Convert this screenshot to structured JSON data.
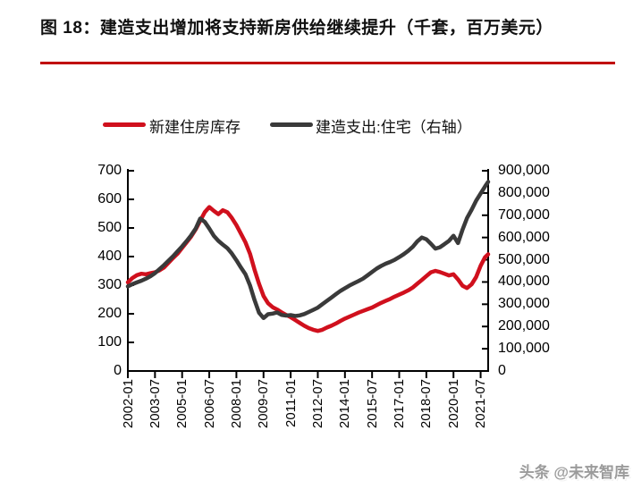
{
  "figure": {
    "title": "图 18：建造支出增加将支持新房供给继续提升（千套，百万美元）",
    "watermark": "头条 @未来智库"
  },
  "colors": {
    "accent_red": "#c00000",
    "series_red": "#d0101d",
    "series_dark": "#3a3a3a",
    "axis_black": "#000000",
    "watermark_gray": "#9b9b9b"
  },
  "chart_data": {
    "type": "line",
    "title": "图 18：建造支出增加将支持新房供给继续提升（千套，百万美元）",
    "legend_position": "top",
    "grid": false,
    "legend": [
      {
        "label": "新建住房库存",
        "color": "#d0101d",
        "axis": "left"
      },
      {
        "label": "建造支出:住宅（右轴）",
        "color": "#3a3a3a",
        "axis": "right"
      }
    ],
    "left_axis": {
      "min": 0,
      "max": 700,
      "step": 100,
      "tick_labels": [
        "0",
        "100",
        "200",
        "300",
        "400",
        "500",
        "600",
        "700"
      ]
    },
    "right_axis": {
      "min": 0,
      "max": 900000,
      "step": 100000,
      "tick_labels": [
        "0",
        "100,000",
        "200,000",
        "300,000",
        "400,000",
        "500,000",
        "600,000",
        "700,000",
        "800,000",
        "900,000"
      ]
    },
    "x_tick_labels": [
      "2002-01",
      "2003-07",
      "2005-01",
      "2006-07",
      "2008-01",
      "2009-07",
      "2011-01",
      "2012-07",
      "2014-01",
      "2015-07",
      "2017-01",
      "2018-07",
      "2020-01",
      "2021-07"
    ],
    "x_start": "2002-01",
    "x_end": "2021-12",
    "dates": [
      "2002-01",
      "2002-04",
      "2002-07",
      "2002-10",
      "2003-01",
      "2003-04",
      "2003-07",
      "2003-10",
      "2004-01",
      "2004-04",
      "2004-07",
      "2004-10",
      "2005-01",
      "2005-04",
      "2005-07",
      "2005-10",
      "2006-01",
      "2006-04",
      "2006-07",
      "2006-10",
      "2007-01",
      "2007-04",
      "2007-07",
      "2007-10",
      "2008-01",
      "2008-04",
      "2008-07",
      "2008-10",
      "2009-01",
      "2009-04",
      "2009-07",
      "2009-10",
      "2010-01",
      "2010-04",
      "2010-07",
      "2010-10",
      "2011-01",
      "2011-04",
      "2011-07",
      "2011-10",
      "2012-01",
      "2012-04",
      "2012-07",
      "2012-10",
      "2013-01",
      "2013-04",
      "2013-07",
      "2013-10",
      "2014-01",
      "2014-04",
      "2014-07",
      "2014-10",
      "2015-01",
      "2015-04",
      "2015-07",
      "2015-10",
      "2016-01",
      "2016-04",
      "2016-07",
      "2016-10",
      "2017-01",
      "2017-04",
      "2017-07",
      "2017-10",
      "2018-01",
      "2018-04",
      "2018-07",
      "2018-10",
      "2019-01",
      "2019-04",
      "2019-07",
      "2019-10",
      "2020-01",
      "2020-04",
      "2020-07",
      "2020-10",
      "2021-01",
      "2021-04",
      "2021-07",
      "2021-10",
      "2021-12"
    ],
    "series": [
      {
        "name": "新建住房库存",
        "axis": "left",
        "color": "#d0101d",
        "values": [
          310,
          325,
          335,
          340,
          338,
          342,
          345,
          352,
          362,
          378,
          395,
          410,
          430,
          450,
          470,
          495,
          525,
          555,
          573,
          560,
          548,
          562,
          555,
          535,
          510,
          480,
          450,
          410,
          355,
          305,
          262,
          237,
          223,
          215,
          205,
          196,
          188,
          178,
          168,
          158,
          150,
          144,
          140,
          144,
          152,
          158,
          166,
          175,
          183,
          190,
          197,
          204,
          210,
          216,
          222,
          230,
          238,
          245,
          252,
          260,
          267,
          274,
          282,
          292,
          305,
          318,
          332,
          345,
          350,
          346,
          340,
          334,
          338,
          320,
          298,
          290,
          303,
          328,
          368,
          398,
          408
        ]
      },
      {
        "name": "建造支出:住宅（右轴）",
        "axis": "right",
        "color": "#3a3a3a",
        "values": [
          380000,
          390000,
          398000,
          406000,
          415000,
          426000,
          440000,
          458000,
          476000,
          496000,
          516000,
          538000,
          560000,
          584000,
          610000,
          640000,
          685000,
          670000,
          640000,
          608000,
          585000,
          568000,
          552000,
          528000,
          498000,
          465000,
          435000,
          385000,
          320000,
          262000,
          238000,
          255000,
          258000,
          263000,
          252000,
          249000,
          251000,
          247000,
          250000,
          256000,
          265000,
          275000,
          285000,
          300000,
          315000,
          330000,
          345000,
          360000,
          372000,
          384000,
          394000,
          404000,
          415000,
          430000,
          445000,
          460000,
          472000,
          482000,
          490000,
          500000,
          512000,
          525000,
          540000,
          558000,
          582000,
          600000,
          592000,
          572000,
          550000,
          556000,
          570000,
          585000,
          608000,
          575000,
          635000,
          688000,
          725000,
          765000,
          798000,
          830000,
          850000
        ]
      }
    ]
  }
}
